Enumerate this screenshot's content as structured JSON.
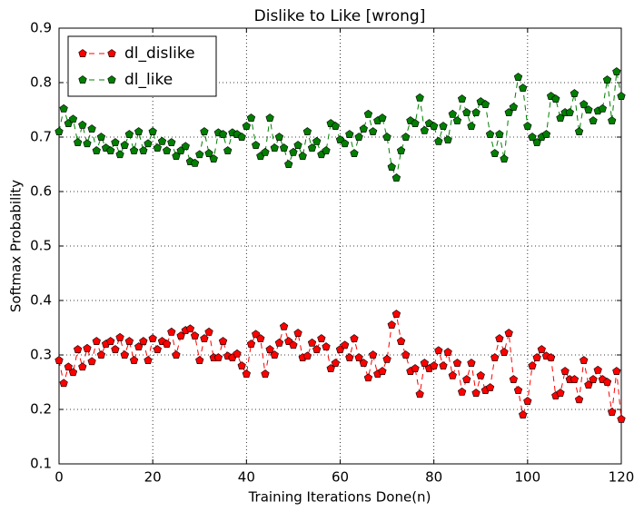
{
  "chart_data": {
    "type": "line",
    "title": "Dislike to Like [wrong]",
    "x_label": "Training Iterations Done(n)",
    "y_label": "Softmax Probability",
    "x": [
      0,
      1,
      2,
      3,
      4,
      5,
      6,
      7,
      8,
      9,
      10,
      11,
      12,
      13,
      14,
      15,
      16,
      17,
      18,
      19,
      20,
      21,
      22,
      23,
      24,
      25,
      26,
      27,
      28,
      29,
      30,
      31,
      32,
      33,
      34,
      35,
      36,
      37,
      38,
      39,
      40,
      41,
      42,
      43,
      44,
      45,
      46,
      47,
      48,
      49,
      50,
      51,
      52,
      53,
      54,
      55,
      56,
      57,
      58,
      59,
      60,
      61,
      62,
      63,
      64,
      65,
      66,
      67,
      68,
      69,
      70,
      71,
      72,
      73,
      74,
      75,
      76,
      77,
      78,
      79,
      80,
      81,
      82,
      83,
      84,
      85,
      86,
      87,
      88,
      89,
      90,
      91,
      92,
      93,
      94,
      95,
      96,
      97,
      98,
      99,
      100,
      101,
      102,
      103,
      104,
      105,
      106,
      107,
      108,
      109,
      110,
      111,
      112,
      113,
      114,
      115,
      116,
      117,
      118,
      119,
      120
    ],
    "series": [
      {
        "name": "dl_dislike",
        "color": "#ff0000",
        "values": [
          0.29,
          0.248,
          0.278,
          0.268,
          0.31,
          0.278,
          0.312,
          0.288,
          0.325,
          0.3,
          0.32,
          0.325,
          0.31,
          0.332,
          0.3,
          0.325,
          0.29,
          0.315,
          0.325,
          0.29,
          0.33,
          0.31,
          0.325,
          0.32,
          0.342,
          0.3,
          0.335,
          0.345,
          0.348,
          0.335,
          0.29,
          0.33,
          0.342,
          0.295,
          0.295,
          0.325,
          0.298,
          0.295,
          0.302,
          0.28,
          0.265,
          0.32,
          0.338,
          0.33,
          0.265,
          0.31,
          0.3,
          0.322,
          0.352,
          0.325,
          0.318,
          0.34,
          0.295,
          0.298,
          0.322,
          0.31,
          0.33,
          0.315,
          0.275,
          0.285,
          0.31,
          0.318,
          0.295,
          0.33,
          0.295,
          0.285,
          0.258,
          0.3,
          0.265,
          0.27,
          0.292,
          0.355,
          0.375,
          0.325,
          0.3,
          0.27,
          0.275,
          0.228,
          0.285,
          0.275,
          0.28,
          0.308,
          0.28,
          0.305,
          0.262,
          0.285,
          0.232,
          0.255,
          0.285,
          0.23,
          0.262,
          0.235,
          0.24,
          0.295,
          0.33,
          0.305,
          0.34,
          0.255,
          0.235,
          0.19,
          0.215,
          0.28,
          0.295,
          0.31,
          0.298,
          0.295,
          0.225,
          0.23,
          0.27,
          0.255,
          0.255,
          0.218,
          0.29,
          0.245,
          0.255,
          0.272,
          0.255,
          0.25,
          0.195,
          0.27,
          0.182
        ]
      },
      {
        "name": "dl_like",
        "color": "#007f00",
        "values": [
          0.71,
          0.752,
          0.725,
          0.733,
          0.69,
          0.722,
          0.688,
          0.715,
          0.675,
          0.7,
          0.68,
          0.675,
          0.69,
          0.668,
          0.685,
          0.705,
          0.675,
          0.71,
          0.675,
          0.688,
          0.71,
          0.68,
          0.692,
          0.675,
          0.69,
          0.665,
          0.675,
          0.683,
          0.655,
          0.652,
          0.668,
          0.71,
          0.67,
          0.66,
          0.708,
          0.705,
          0.675,
          0.708,
          0.705,
          0.7,
          0.72,
          0.735,
          0.685,
          0.665,
          0.672,
          0.735,
          0.68,
          0.7,
          0.68,
          0.65,
          0.672,
          0.685,
          0.665,
          0.71,
          0.68,
          0.692,
          0.668,
          0.675,
          0.725,
          0.72,
          0.695,
          0.688,
          0.705,
          0.67,
          0.7,
          0.715,
          0.742,
          0.71,
          0.73,
          0.735,
          0.7,
          0.645,
          0.625,
          0.675,
          0.7,
          0.73,
          0.725,
          0.772,
          0.712,
          0.725,
          0.72,
          0.692,
          0.72,
          0.695,
          0.742,
          0.73,
          0.77,
          0.745,
          0.72,
          0.745,
          0.765,
          0.76,
          0.705,
          0.67,
          0.705,
          0.66,
          0.745,
          0.755,
          0.81,
          0.79,
          0.72,
          0.7,
          0.69,
          0.7,
          0.705,
          0.775,
          0.77,
          0.735,
          0.745,
          0.745,
          0.78,
          0.71,
          0.76,
          0.75,
          0.73,
          0.748,
          0.752,
          0.805,
          0.73,
          0.82,
          0.775
        ]
      }
    ],
    "xlim": [
      0,
      120
    ],
    "ylim": [
      0.1,
      0.9
    ],
    "xticks": [
      0,
      20,
      40,
      60,
      80,
      100,
      120
    ],
    "yticks": [
      0.1,
      0.2,
      0.3,
      0.4,
      0.5,
      0.6,
      0.7,
      0.8,
      0.9
    ],
    "grid": true,
    "legend": "upper-left"
  }
}
